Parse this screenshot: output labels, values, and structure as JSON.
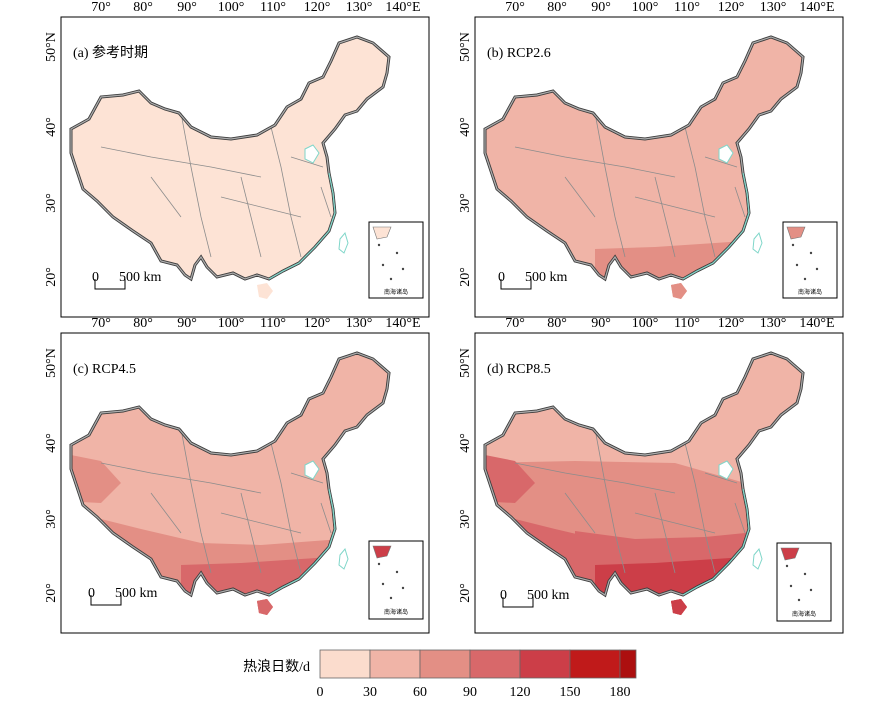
{
  "figure": {
    "lon_ticks": [
      "70°",
      "80°",
      "90°",
      "100°",
      "110°",
      "120°",
      "130°",
      "140°E"
    ],
    "lat_ticks": [
      "50°N",
      "40°",
      "30°",
      "20°"
    ],
    "scale_bar": {
      "zero": "0",
      "label": "500 km"
    },
    "inset_label": "南海诸岛",
    "panels": [
      {
        "id": "a",
        "title": "(a) 参考时期",
        "level": 0
      },
      {
        "id": "b",
        "title": "(b) RCP2.6",
        "level": 1
      },
      {
        "id": "c",
        "title": "(c) RCP4.5",
        "level": 2
      },
      {
        "id": "d",
        "title": "(d) RCP8.5",
        "level": 3
      }
    ]
  },
  "legend": {
    "title": "热浪日数/d",
    "ticks": [
      "0",
      "30",
      "60",
      "90",
      "120",
      "150",
      "180"
    ],
    "colors": [
      "#fbdccd",
      "#f0b4a7",
      "#e38f85",
      "#d8686a",
      "#cc3e48",
      "#c01a1a",
      "#ac0f0f"
    ]
  }
}
